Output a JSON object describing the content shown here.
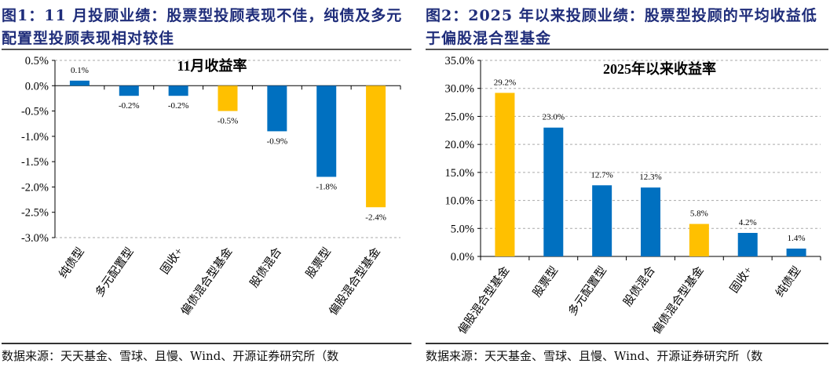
{
  "colors": {
    "blue": "#0070C0",
    "gold": "#FFC000",
    "title": "#1f2d7a"
  },
  "figures": [
    {
      "title_line1": "图1：11 月投顾业绩：股票型投顾表现不佳，纯债及多元",
      "title_line2": "配置型投顾表现相对较佳",
      "source": "数据来源：天天基金、雪球、且慢、Wind、开源证券研究所（数"
    },
    {
      "title_line1": "图2：2025 年以来投顾业绩：股票型投顾的平均收益低",
      "title_line2": "于偏股混合型基金",
      "source": "数据来源：天天基金、雪球、且慢、Wind、开源证券研究所（数"
    }
  ],
  "chart_data": [
    {
      "type": "bar",
      "title": "11月收益率",
      "categories": [
        "纯债型",
        "多元配置型",
        "固收+",
        "偏债混合型基金",
        "股债混合",
        "股票型",
        "偏股混合型基金"
      ],
      "values": [
        0.1,
        -0.2,
        -0.2,
        -0.5,
        -0.9,
        -1.8,
        -2.4
      ],
      "data_labels": [
        "0.1%",
        "-0.2%",
        "-0.2%",
        "-0.5%",
        "-0.9%",
        "-1.8%",
        "-2.4%"
      ],
      "bar_colors": [
        "blue",
        "blue",
        "blue",
        "gold",
        "blue",
        "blue",
        "gold"
      ],
      "ylim": [
        -3.0,
        0.5
      ],
      "yticks": [
        "0.5%",
        "0.0%",
        "-0.5%",
        "-1.0%",
        "-1.5%",
        "-2.0%",
        "-2.5%",
        "-3.0%"
      ],
      "grid": "dashed top and bottom only",
      "legend": "none"
    },
    {
      "type": "bar",
      "title": "2025年以来收益率",
      "categories": [
        "偏股混合型基金",
        "股票型",
        "多元配置型",
        "股债混合",
        "偏债混合型基金",
        "固收+",
        "纯债型"
      ],
      "values": [
        29.2,
        23.0,
        12.7,
        12.3,
        5.8,
        4.2,
        1.4
      ],
      "data_labels": [
        "29.2%",
        "23.0%",
        "12.7%",
        "12.3%",
        "5.8%",
        "4.2%",
        "1.4%"
      ],
      "bar_colors": [
        "gold",
        "blue",
        "blue",
        "blue",
        "gold",
        "blue",
        "blue"
      ],
      "ylim": [
        0,
        35
      ],
      "yticks": [
        "35.0%",
        "30.0%",
        "25.0%",
        "20.0%",
        "15.0%",
        "10.0%",
        "5.0%",
        "0.0%"
      ],
      "grid": "dashed horizontal",
      "legend": "none"
    }
  ]
}
